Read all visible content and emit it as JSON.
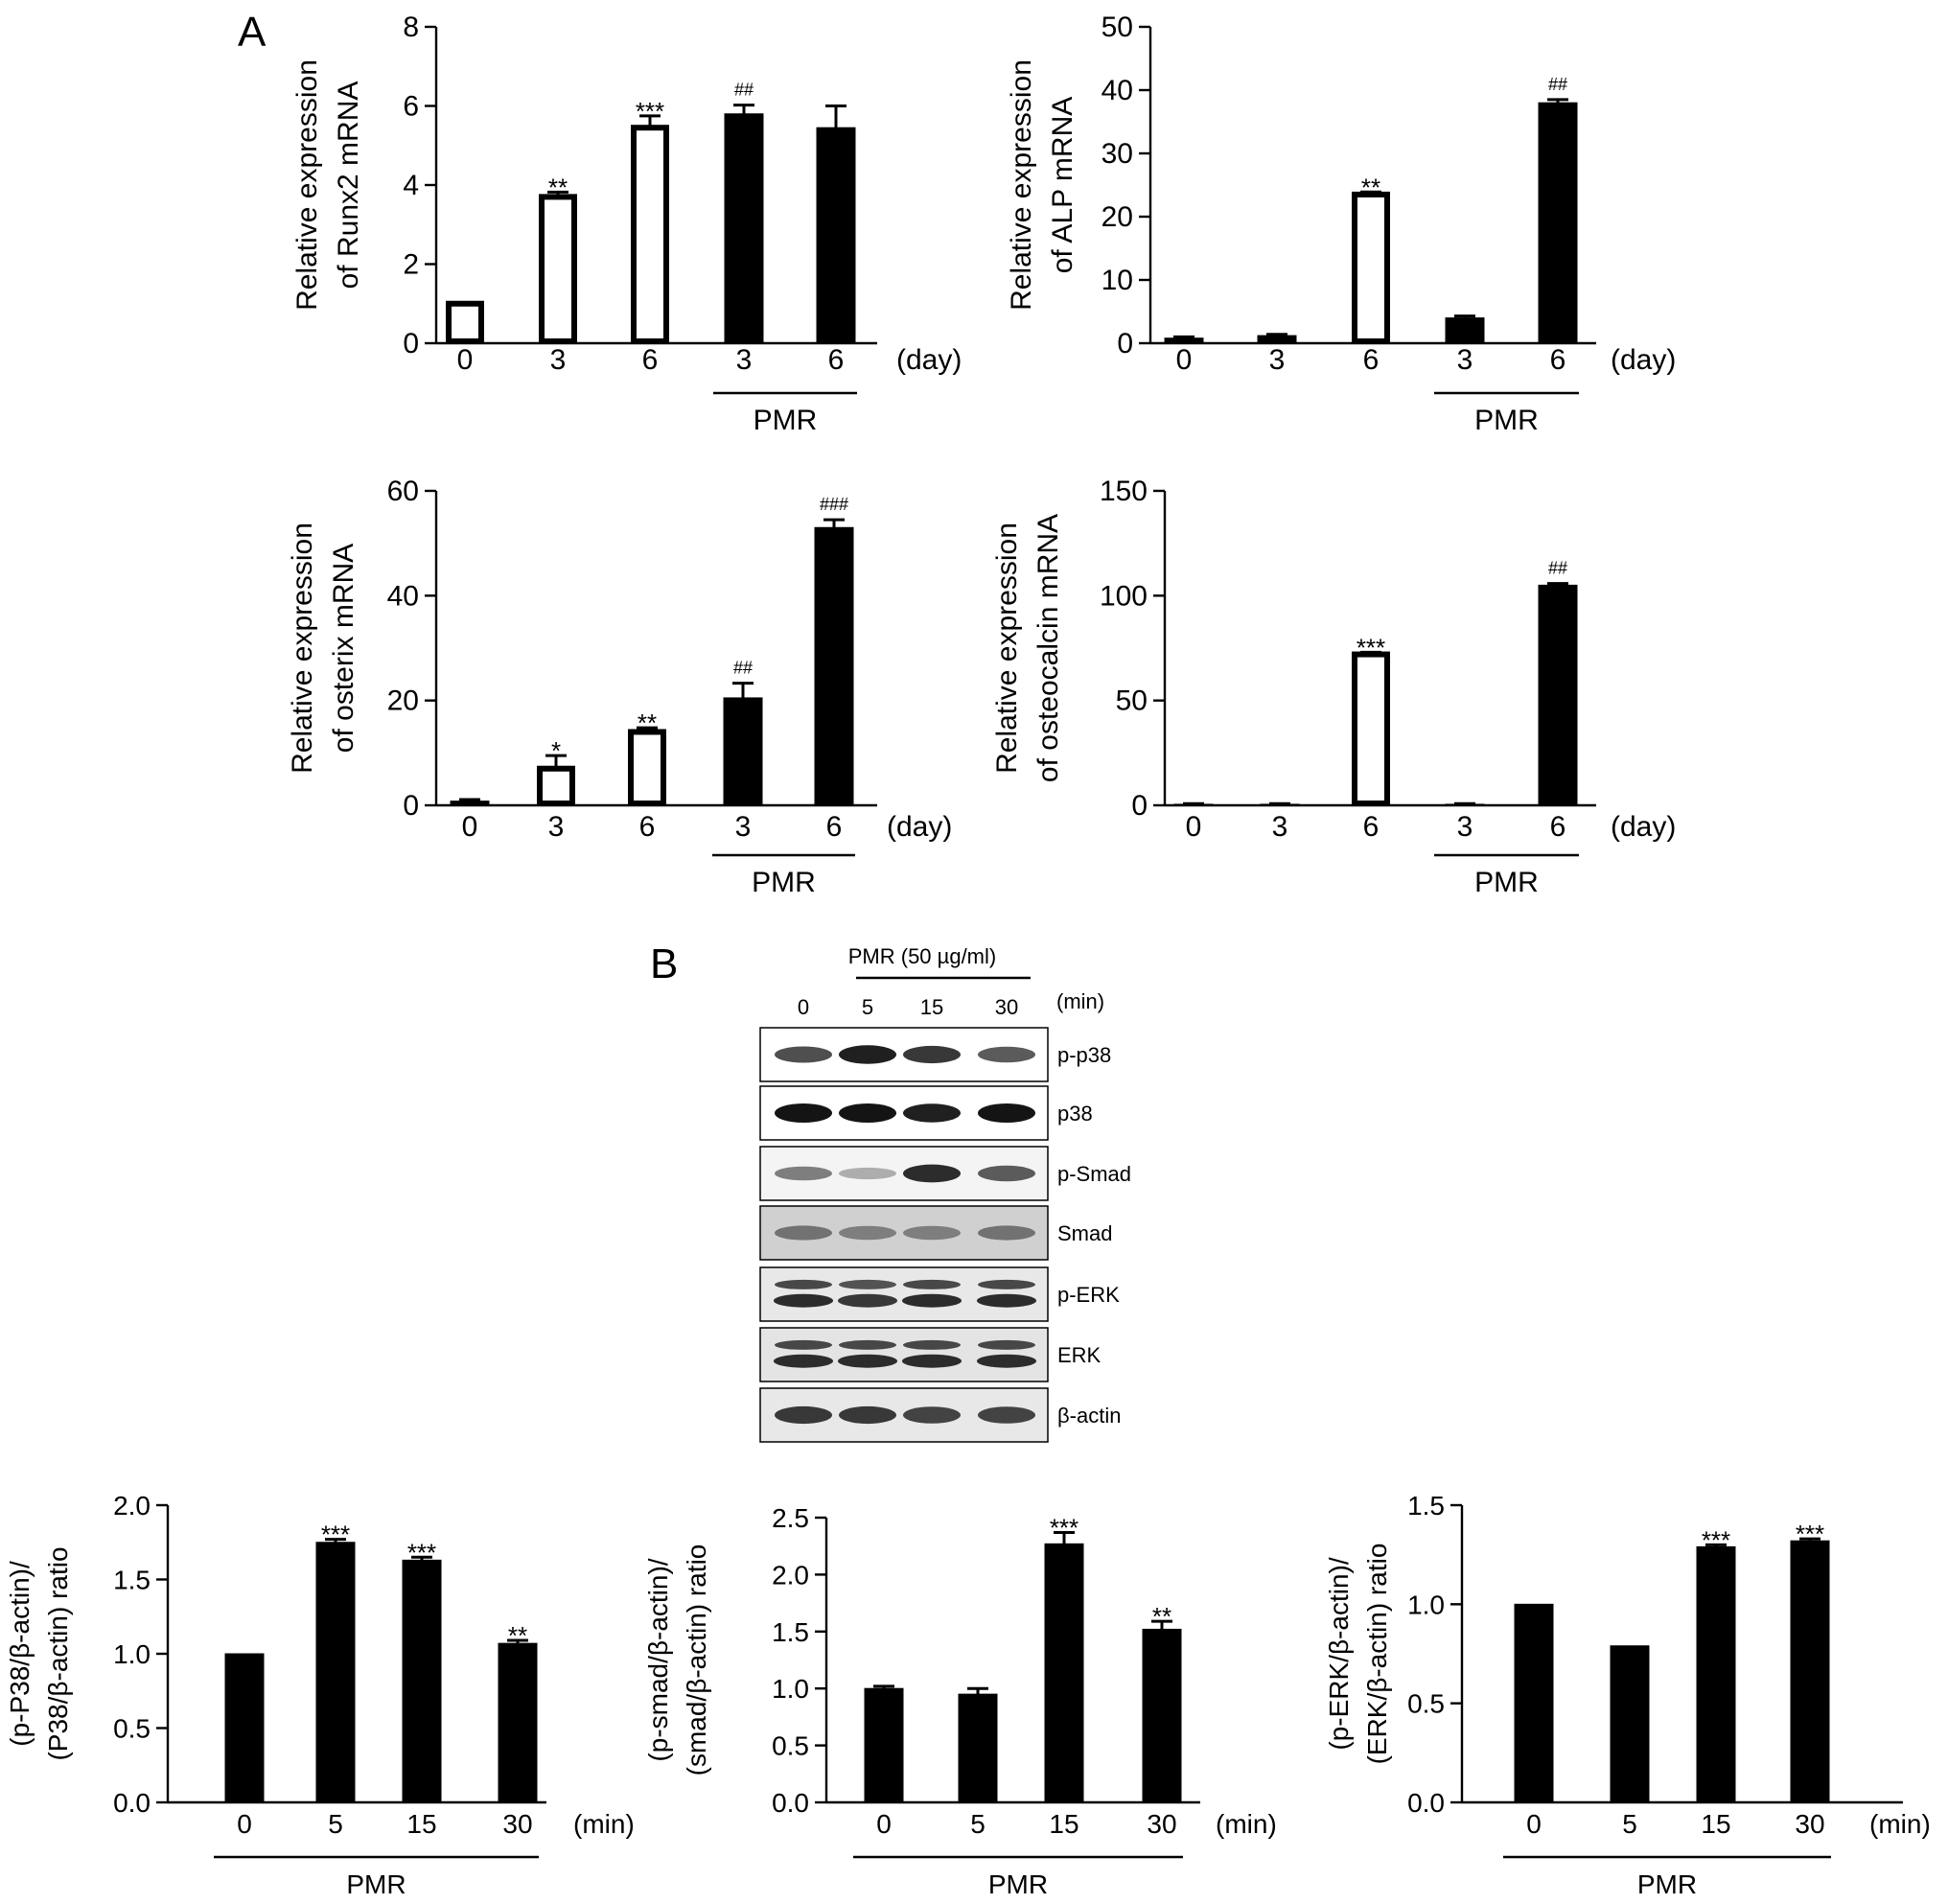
{
  "panel_labels": {
    "a": "A",
    "b": "B"
  },
  "chart_data": [
    {
      "id": "runx2",
      "type": "bar",
      "ylabel": [
        "Relative expression",
        "of Runx2 mRNA"
      ],
      "categories": [
        "0",
        "3",
        "6",
        "3",
        "6"
      ],
      "unit_label": "(day)",
      "group_label": "PMR",
      "ylim": [
        0,
        8
      ],
      "yticks": [
        "0",
        "2",
        "4",
        "6",
        "8"
      ],
      "values": [
        1.0,
        3.7,
        5.45,
        5.8,
        5.45
      ],
      "errors": [
        0,
        0.12,
        0.3,
        0.22,
        0.55
      ],
      "fills": [
        "open",
        "open",
        "open",
        "filled",
        "filled"
      ],
      "annotations": [
        "",
        "**",
        "***",
        "##",
        ""
      ]
    },
    {
      "id": "alp",
      "type": "bar",
      "ylabel": [
        "Relative expression",
        "of ALP mRNA"
      ],
      "categories": [
        "0",
        "3",
        "6",
        "3",
        "6"
      ],
      "unit_label": "(day)",
      "group_label": "PMR",
      "ylim": [
        0,
        50
      ],
      "yticks": [
        "0",
        "10",
        "20",
        "30",
        "40",
        "50"
      ],
      "values": [
        0.8,
        1.2,
        23.5,
        4.0,
        38.0
      ],
      "errors": [
        0.2,
        0.2,
        0.4,
        0.3,
        0.5
      ],
      "fills": [
        "filled",
        "filled",
        "open",
        "filled",
        "filled"
      ],
      "annotations": [
        "",
        "",
        "**",
        "",
        "##"
      ]
    },
    {
      "id": "osterix",
      "type": "bar",
      "ylabel": [
        "Relative expression",
        "of osterix mRNA"
      ],
      "categories": [
        "0",
        "3",
        "6",
        "3",
        "6"
      ],
      "unit_label": "(day)",
      "group_label": "PMR",
      "ylim": [
        0,
        60
      ],
      "yticks": [
        "0",
        "20",
        "40",
        "60"
      ],
      "values": [
        0.8,
        7.0,
        14.0,
        20.5,
        53.0
      ],
      "errors": [
        0.3,
        2.5,
        0.8,
        2.8,
        1.5
      ],
      "fills": [
        "filled",
        "open",
        "open",
        "filled",
        "filled"
      ],
      "annotations": [
        "",
        "*",
        "**",
        "##",
        "###"
      ]
    },
    {
      "id": "osteocalcin",
      "type": "bar",
      "ylabel": [
        "Relative expression",
        "of osteocalcin mRNA"
      ],
      "categories": [
        "0",
        "3",
        "6",
        "3",
        "6"
      ],
      "unit_label": "(day)",
      "group_label": "PMR",
      "ylim": [
        0,
        150
      ],
      "yticks": [
        "0",
        "50",
        "100",
        "150"
      ],
      "values": [
        0.5,
        0.5,
        72.0,
        0.5,
        105.0
      ],
      "errors": [
        0.3,
        0.3,
        1.0,
        0.3,
        0.8
      ],
      "fills": [
        "filled",
        "filled",
        "open",
        "filled",
        "filled"
      ],
      "annotations": [
        "",
        "",
        "***",
        "",
        "##"
      ]
    },
    {
      "id": "p38ratio",
      "type": "bar",
      "ylabel": [
        "(p-P38/β-actin)/",
        "(P38/β-actin) ratio"
      ],
      "categories": [
        "0",
        "5",
        "15",
        "30"
      ],
      "unit_label": "(min)",
      "group_label": "PMR",
      "ylim": [
        0,
        2.0
      ],
      "yticks": [
        "0.0",
        "0.5",
        "1.0",
        "1.5",
        "2.0"
      ],
      "values": [
        1.0,
        1.75,
        1.63,
        1.07
      ],
      "errors": [
        0,
        0.02,
        0.02,
        0.02
      ],
      "fills": [
        "filled",
        "filled",
        "filled",
        "filled"
      ],
      "annotations": [
        "",
        "***",
        "***",
        "**"
      ]
    },
    {
      "id": "smadratio",
      "type": "bar",
      "ylabel": [
        "(p-smad/β-actin)/",
        "(smad/β-actin) ratio"
      ],
      "categories": [
        "0",
        "5",
        "15",
        "30"
      ],
      "unit_label": "(min)",
      "group_label": "PMR",
      "ylim": [
        0,
        2.5
      ],
      "yticks": [
        "0.0",
        "0.5",
        "1.0",
        "1.5",
        "2.0",
        "2.5"
      ],
      "values": [
        1.0,
        0.95,
        2.27,
        1.52
      ],
      "errors": [
        0.02,
        0.05,
        0.1,
        0.07
      ],
      "fills": [
        "filled",
        "filled",
        "filled",
        "filled"
      ],
      "annotations": [
        "",
        "",
        "***",
        "**"
      ]
    },
    {
      "id": "erkratio",
      "type": "bar",
      "ylabel": [
        "(p-ERK/β-actin)/",
        "(ERK/β-actin) ratio"
      ],
      "categories": [
        "0",
        "5",
        "15",
        "30"
      ],
      "unit_label": "(min)",
      "group_label": "PMR",
      "ylim": [
        0,
        1.5
      ],
      "yticks": [
        "0.0",
        "0.5",
        "1.0",
        "1.5"
      ],
      "values": [
        1.0,
        0.79,
        1.29,
        1.32
      ],
      "errors": [
        0,
        0,
        0.01,
        0.01
      ],
      "fills": [
        "filled",
        "filled",
        "filled",
        "filled"
      ],
      "annotations": [
        "",
        "",
        "***",
        "***"
      ]
    }
  ],
  "blot": {
    "treatment_label": "PMR (50 µg/ml)",
    "time_labels": [
      "0",
      "5",
      "15",
      "30"
    ],
    "unit_label": "(min)",
    "rows": [
      {
        "label": "p-p38",
        "intensity": [
          0.75,
          0.95,
          0.85,
          0.7
        ],
        "double": false
      },
      {
        "label": "p38",
        "intensity": [
          1.0,
          1.0,
          0.95,
          1.0
        ],
        "double": false
      },
      {
        "label": "p-Smad",
        "intensity": [
          0.55,
          0.35,
          0.9,
          0.7
        ],
        "double": false
      },
      {
        "label": "Smad",
        "intensity": [
          0.6,
          0.55,
          0.55,
          0.6
        ],
        "double": false
      },
      {
        "label": "p-ERK",
        "intensity": [
          0.9,
          0.85,
          0.9,
          0.9
        ],
        "double": true
      },
      {
        "label": "ERK",
        "intensity": [
          0.9,
          0.9,
          0.9,
          0.9
        ],
        "double": true
      },
      {
        "label": "β-actin",
        "intensity": [
          0.85,
          0.85,
          0.8,
          0.8
        ],
        "double": false
      }
    ]
  }
}
